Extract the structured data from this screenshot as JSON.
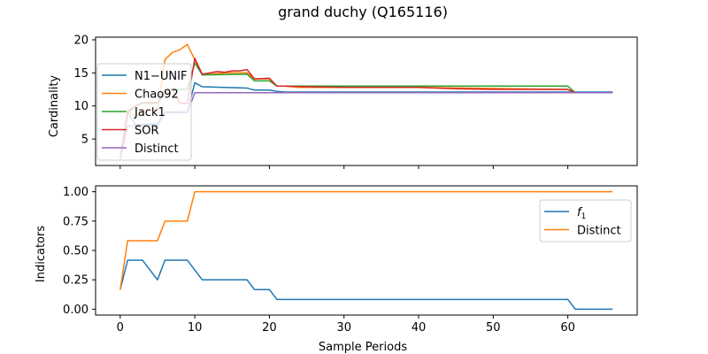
{
  "figure": {
    "title": "grand duchy (Q165116)"
  },
  "colors": {
    "blue": "#1f77b4",
    "orange": "#ff7f0e",
    "green": "#2ca02c",
    "red": "#d62728",
    "purple": "#9467bd"
  },
  "chart_data": [
    {
      "type": "line",
      "title": "",
      "xlabel": "",
      "ylabel": "Cardinality",
      "xlim": [
        -3.3,
        69.3
      ],
      "ylim": [
        1.0,
        20.4
      ],
      "yticks": [
        5,
        10,
        15,
        20
      ],
      "xticks": [
        0,
        10,
        20,
        30,
        40,
        50,
        60
      ],
      "show_xtick_labels": false,
      "grid": false,
      "legend": "upper-left",
      "series": [
        {
          "name": "N1−UNIF",
          "color": "#1f77b4",
          "x": [
            0,
            1,
            2,
            3,
            5,
            6,
            9,
            10,
            11,
            14,
            17,
            18,
            20,
            21,
            22,
            66
          ],
          "y": [
            2,
            9,
            7.2,
            7.2,
            7.3,
            9.1,
            9.1,
            13.5,
            12.9,
            12.8,
            12.7,
            12.4,
            12.4,
            12.2,
            12.1,
            12.1
          ]
        },
        {
          "name": "Chao92",
          "color": "#ff7f0e",
          "x": [
            0,
            1,
            2,
            3,
            5,
            6,
            7,
            8,
            9,
            10,
            11,
            14,
            17,
            18,
            20,
            21,
            22,
            24,
            40,
            60,
            61,
            66
          ],
          "y": [
            2,
            9.3,
            8.4,
            9.4,
            9.4,
            17.0,
            18.1,
            18.5,
            19.3,
            17.0,
            14.7,
            15.0,
            15.0,
            14.1,
            14.1,
            13.0,
            13.0,
            12.8,
            12.8,
            12.5,
            12.0,
            12.0
          ]
        },
        {
          "name": "Jack1",
          "color": "#2ca02c",
          "x": [
            0,
            1,
            2,
            3,
            5,
            6,
            8,
            9,
            10,
            11,
            17,
            18,
            20,
            21,
            22,
            60,
            61,
            66
          ],
          "y": [
            2,
            8.8,
            10.0,
            10.4,
            10.4,
            12.5,
            12.5,
            12.5,
            16.5,
            14.7,
            14.8,
            13.8,
            13.8,
            13.0,
            13.0,
            13.0,
            12.0,
            12.0
          ]
        },
        {
          "name": "SOR",
          "color": "#d62728",
          "x": [
            0,
            1,
            2,
            3,
            5,
            6,
            7,
            8,
            9,
            10,
            11,
            12,
            13,
            14,
            15,
            16,
            17,
            18,
            20,
            21,
            22,
            25,
            30,
            40,
            45,
            50,
            60,
            61,
            66
          ],
          "y": [
            2,
            9.2,
            10.0,
            10.5,
            10.5,
            11.8,
            12.7,
            10.4,
            10.4,
            17.2,
            14.8,
            15.0,
            15.2,
            15.1,
            15.3,
            15.3,
            15.5,
            14.1,
            14.2,
            13.0,
            13.0,
            12.9,
            12.8,
            12.8,
            12.6,
            12.5,
            12.5,
            12.0,
            12.0
          ]
        },
        {
          "name": "Distinct",
          "color": "#9467bd",
          "x": [
            0,
            1,
            2,
            3,
            5,
            6,
            9,
            10,
            11,
            66
          ],
          "y": [
            2,
            7.0,
            7.0,
            7.0,
            7.0,
            9.0,
            9.0,
            12.0,
            12.0,
            12.0
          ]
        }
      ]
    },
    {
      "type": "line",
      "title": "",
      "xlabel": "Sample Periods",
      "ylabel": "Indicators",
      "xlim": [
        -3.3,
        69.3
      ],
      "ylim": [
        -0.05,
        1.05
      ],
      "yticks": [
        0.0,
        0.25,
        0.5,
        0.75,
        1.0
      ],
      "ytick_labels": [
        "0.00",
        "0.25",
        "0.50",
        "0.75",
        "1.00"
      ],
      "xticks": [
        0,
        10,
        20,
        30,
        40,
        50,
        60
      ],
      "grid": false,
      "legend": "upper-right",
      "series": [
        {
          "name": "f1",
          "color": "#1f77b4",
          "x": [
            0,
            1,
            3,
            5,
            6,
            9,
            11,
            17,
            18,
            20,
            21,
            60,
            61,
            66
          ],
          "y": [
            0.167,
            0.417,
            0.417,
            0.25,
            0.417,
            0.417,
            0.25,
            0.25,
            0.167,
            0.167,
            0.083,
            0.083,
            0.0,
            0.0
          ]
        },
        {
          "name": "Distinct",
          "color": "#ff7f0e",
          "x": [
            0,
            1,
            5,
            6,
            9,
            10,
            66
          ],
          "y": [
            0.167,
            0.583,
            0.583,
            0.75,
            0.75,
            1.0,
            1.0
          ]
        }
      ]
    }
  ]
}
